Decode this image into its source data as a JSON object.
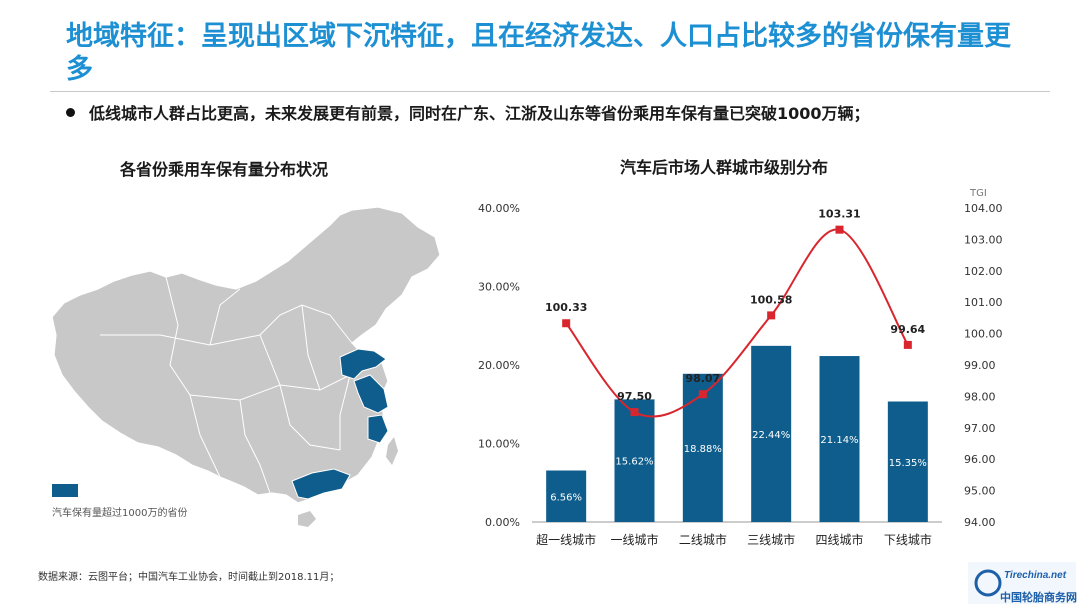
{
  "header": {
    "title": "地域特征：呈现出区域下沉特征，且在经济发达、人口占比较多的省份保有量更多",
    "bullet": "低线城市人群占比更高，未来发展更有前景，同时在广东、江浙及山东等省份乘用车保有量已突破1000万辆；"
  },
  "map": {
    "title": "各省份乘用车保有量分布状况",
    "legend": "汽车保有量超过1000万的省份",
    "highlight_color": "#0e5d8c",
    "base_color": "#c8c8c8"
  },
  "chart_data": {
    "type": "bar",
    "title": "汽车后市场人群城市级别分布",
    "categories": [
      "超一线城市",
      "一线城市",
      "二线城市",
      "三线城市",
      "四线城市",
      "下线城市"
    ],
    "series": [
      {
        "values": [
          6.56,
          15.62,
          18.88,
          22.44,
          21.14,
          15.35
        ],
        "labels": [
          "6.56%",
          "15.62%",
          "18.88%",
          "22.44%",
          "21.14%",
          "15.35%"
        ],
        "axis": "left",
        "color": "#0e5d8c"
      },
      {
        "type": "line",
        "values": [
          100.33,
          97.5,
          98.07,
          100.58,
          103.31,
          99.64
        ],
        "labels": [
          "100.33",
          "97.50",
          "98.07",
          "100.58",
          "103.31",
          "99.64"
        ],
        "axis": "right",
        "color": "#d9262e"
      }
    ],
    "y_left": {
      "ticks": [
        "0.00%",
        "10.00%",
        "20.00%",
        "30.00%",
        "40.00%"
      ],
      "range": [
        0,
        40
      ]
    },
    "y_right": {
      "label": "TGI",
      "ticks": [
        "94.00",
        "95.00",
        "96.00",
        "97.00",
        "98.00",
        "99.00",
        "100.00",
        "101.00",
        "102.00",
        "103.00",
        "104.00"
      ],
      "range": [
        94,
        104
      ]
    },
    "grid": false
  },
  "footer": {
    "source": "数据来源：云图平台；中国汽车工业协会，时间截止到2018.11月；",
    "logo_text": "中国轮胎商务网",
    "logo_mark": "Tirechina.net"
  }
}
